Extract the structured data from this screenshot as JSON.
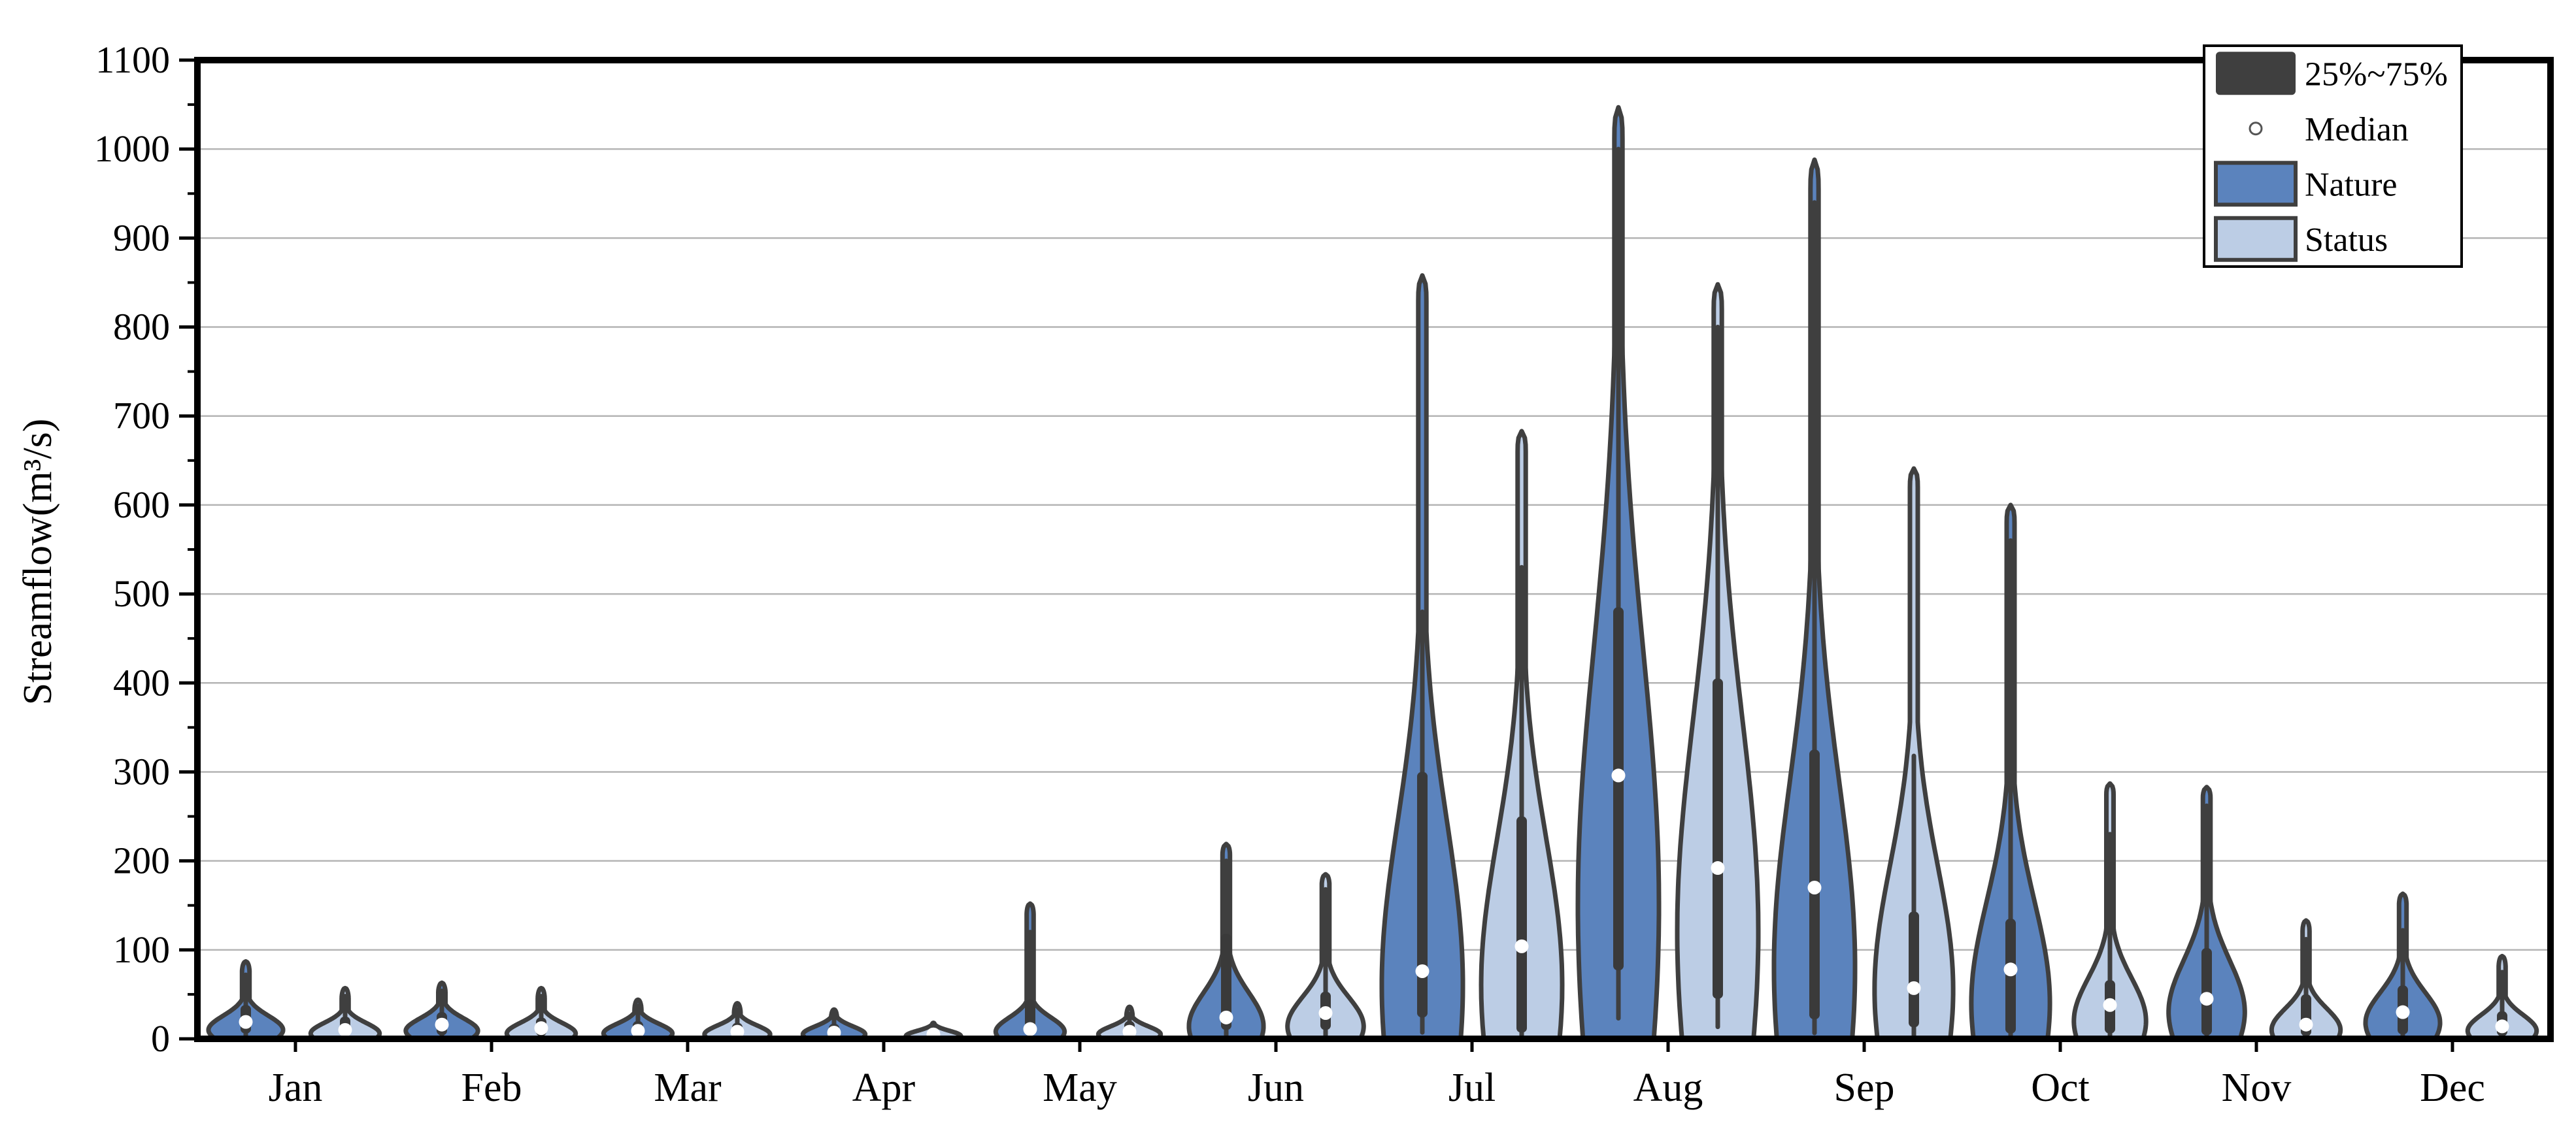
{
  "chart_data": {
    "type": "violin",
    "title": "",
    "xlabel": "",
    "ylabel": "Streamflow(m³/s)",
    "ylim": [
      0,
      1100
    ],
    "ytick_step": 100,
    "yminor_step": 50,
    "yticks": [
      0,
      100,
      200,
      300,
      400,
      500,
      600,
      700,
      800,
      900,
      1000,
      1100
    ],
    "grid": "horizontal-major",
    "categories": [
      "Jan",
      "Feb",
      "Mar",
      "Apr",
      "May",
      "Jun",
      "Jul",
      "Aug",
      "Sep",
      "Oct",
      "Nov",
      "Dec"
    ],
    "legend": {
      "position": "top-right",
      "items": [
        {
          "label": "25%~75%",
          "swatch": "box",
          "color": "#3f3f3f"
        },
        {
          "label": "Median",
          "swatch": "circle",
          "color": "#ffffff"
        },
        {
          "label": "Nature",
          "swatch": "rect",
          "color": "#5b83bd"
        },
        {
          "label": "Status",
          "swatch": "rect",
          "color": "#bccde5"
        }
      ]
    },
    "series": [
      {
        "name": "Nature",
        "color": "#5b83bd",
        "violins": [
          {
            "month": "Jan",
            "max": 87,
            "whisker_top": 72,
            "q3": 38,
            "median": 19,
            "q1": 6,
            "mode": 10,
            "spread": 16,
            "w": 0.92
          },
          {
            "month": "Feb",
            "max": 63,
            "whisker_top": 54,
            "q3": 30,
            "median": 16,
            "q1": 4,
            "mode": 9,
            "spread": 14,
            "w": 0.89
          },
          {
            "month": "Mar",
            "max": 44,
            "whisker_top": 37,
            "q3": 20,
            "median": 9,
            "q1": 3,
            "mode": 6,
            "spread": 11,
            "w": 0.85
          },
          {
            "month": "Apr",
            "max": 33,
            "whisker_top": 27,
            "q3": 17,
            "median": 7,
            "q1": 3,
            "mode": 5,
            "spread": 9,
            "w": 0.77
          },
          {
            "month": "May",
            "max": 152,
            "whisker_top": 120,
            "q3": 44,
            "median": 11,
            "q1": 7,
            "mode": 8,
            "spread": 16,
            "w": 0.85
          },
          {
            "month": "Jun",
            "max": 219,
            "whisker_top": 200,
            "q3": 118,
            "median": 24,
            "q1": 10,
            "mode": 14,
            "spread": 38,
            "w": 0.92
          },
          {
            "month": "Jul",
            "max": 858,
            "whisker_top": 480,
            "q3": 300,
            "median": 76,
            "q1": 24,
            "mode": 60,
            "spread": 185,
            "w": 1.0
          },
          {
            "month": "Aug",
            "max": 1047,
            "whisker_top": 1000,
            "q3": 485,
            "median": 296,
            "q1": 77,
            "mode": 150,
            "spread": 290,
            "w": 1.0
          },
          {
            "month": "Sep",
            "max": 988,
            "whisker_top": 940,
            "q3": 325,
            "median": 170,
            "q1": 22,
            "mode": 80,
            "spread": 210,
            "w": 1.0
          },
          {
            "month": "Oct",
            "max": 600,
            "whisker_top": 560,
            "q3": 135,
            "median": 78,
            "q1": 6,
            "mode": 40,
            "spread": 115,
            "w": 0.97
          },
          {
            "month": "Nov",
            "max": 283,
            "whisker_top": 262,
            "q3": 102,
            "median": 45,
            "q1": 4,
            "mode": 30,
            "spread": 58,
            "w": 0.94
          },
          {
            "month": "Dec",
            "max": 163,
            "whisker_top": 122,
            "q3": 60,
            "median": 30,
            "q1": 5,
            "mode": 18,
            "spread": 34,
            "w": 0.92
          }
        ]
      },
      {
        "name": "Status",
        "color": "#bccde5",
        "violins": [
          {
            "month": "Jan",
            "max": 57,
            "whisker_top": 48,
            "q3": 25,
            "median": 10,
            "q1": 3,
            "mode": 6,
            "spread": 12,
            "w": 0.85
          },
          {
            "month": "Feb",
            "max": 57,
            "whisker_top": 48,
            "q3": 24,
            "median": 12,
            "q1": 3,
            "mode": 6,
            "spread": 12,
            "w": 0.85
          },
          {
            "month": "Mar",
            "max": 40,
            "whisker_top": 33,
            "q3": 18,
            "median": 8,
            "q1": 3,
            "mode": 5,
            "spread": 10,
            "w": 0.81
          },
          {
            "month": "Apr",
            "max": 18,
            "whisker_top": 14,
            "q3": 10,
            "median": 5,
            "q1": 2,
            "mode": 3,
            "spread": 6,
            "w": 0.68
          },
          {
            "month": "May",
            "max": 36,
            "whisker_top": 28,
            "q3": 20,
            "median": 8,
            "q1": 3,
            "mode": 5,
            "spread": 9,
            "w": 0.77
          },
          {
            "month": "Jun",
            "max": 185,
            "whisker_top": 168,
            "q3": 53,
            "median": 29,
            "q1": 10,
            "mode": 14,
            "spread": 33,
            "w": 0.94
          },
          {
            "month": "Jul",
            "max": 683,
            "whisker_top": 530,
            "q3": 250,
            "median": 104,
            "q1": 7,
            "mode": 60,
            "spread": 165,
            "w": 1.0
          },
          {
            "month": "Aug",
            "max": 848,
            "whisker_top": 800,
            "q3": 405,
            "median": 192,
            "q1": 45,
            "mode": 120,
            "spread": 240,
            "w": 1.0
          },
          {
            "month": "Sep",
            "max": 641,
            "whisker_top": 318,
            "q3": 143,
            "median": 57,
            "q1": 13,
            "mode": 55,
            "spread": 140,
            "w": 0.97
          },
          {
            "month": "Oct",
            "max": 287,
            "whisker_top": 230,
            "q3": 66,
            "median": 38,
            "q1": 6,
            "mode": 20,
            "spread": 48,
            "w": 0.89
          },
          {
            "month": "Nov",
            "max": 133,
            "whisker_top": 112,
            "q3": 50,
            "median": 16,
            "q1": 3,
            "mode": 10,
            "spread": 24,
            "w": 0.85
          },
          {
            "month": "Dec",
            "max": 93,
            "whisker_top": 75,
            "q3": 31,
            "median": 14,
            "q1": 3,
            "mode": 9,
            "spread": 18,
            "w": 0.85
          }
        ]
      }
    ]
  },
  "style": {
    "violin_outline": "#3f3f3f",
    "box_color": "#3a3a3a",
    "median_color": "#ffffff",
    "gridline_color": "#b4b4b4",
    "axis_color": "#000000",
    "background": "#ffffff"
  }
}
